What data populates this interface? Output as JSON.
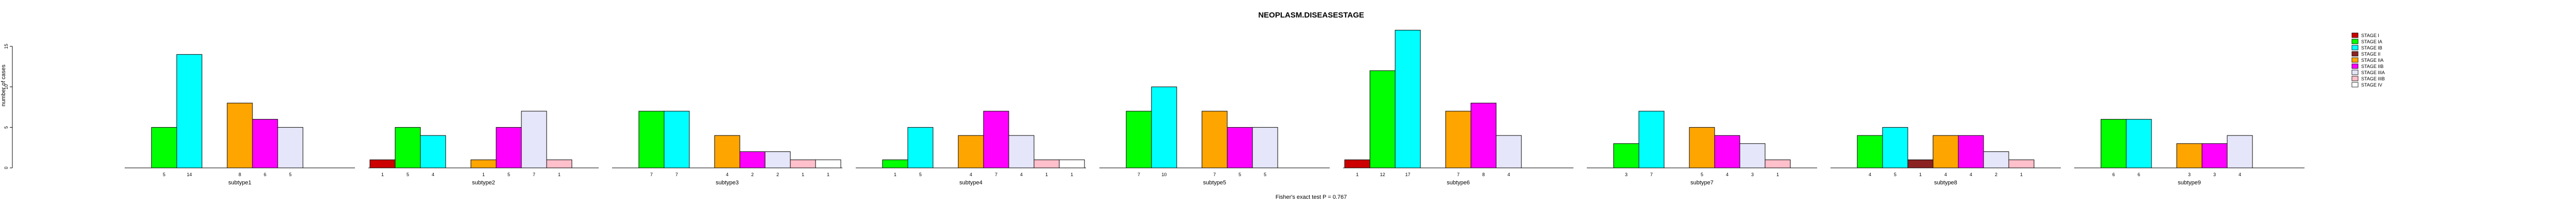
{
  "chart_data": {
    "type": "bar",
    "title": "NEOPLASM.DISEASESTAGE",
    "xlabel": "Fisher's exact test P = 0.767",
    "ylabel": "number of cases",
    "ylim": [
      0,
      15
    ],
    "yticks": [
      0,
      5,
      10,
      15
    ],
    "legend_position": "top-right",
    "stages": [
      {
        "name": "STAGE I",
        "color": "#cc0000"
      },
      {
        "name": "STAGE IA",
        "color": "#00ff00"
      },
      {
        "name": "STAGE IB",
        "color": "#00ffff"
      },
      {
        "name": "STAGE II",
        "color": "#8b2323"
      },
      {
        "name": "STAGE IIA",
        "color": "#ffa500"
      },
      {
        "name": "STAGE IIB",
        "color": "#ff00ff"
      },
      {
        "name": "STAGE IIIA",
        "color": "#e6e6fa"
      },
      {
        "name": "STAGE IIIB",
        "color": "#ffc0cb"
      },
      {
        "name": "STAGE IV",
        "color": "#ffffff"
      }
    ],
    "groups": [
      {
        "name": "subtype1",
        "values": [
          0,
          5,
          14,
          0,
          8,
          6,
          5,
          0,
          0
        ]
      },
      {
        "name": "subtype2",
        "values": [
          1,
          5,
          4,
          0,
          1,
          5,
          7,
          1,
          0
        ]
      },
      {
        "name": "subtype3",
        "values": [
          0,
          7,
          7,
          0,
          4,
          2,
          2,
          1,
          1
        ]
      },
      {
        "name": "subtype4",
        "values": [
          0,
          1,
          5,
          0,
          4,
          7,
          4,
          1,
          1
        ]
      },
      {
        "name": "subtype5",
        "values": [
          0,
          7,
          10,
          0,
          7,
          5,
          5,
          0,
          0
        ]
      },
      {
        "name": "subtype6",
        "values": [
          1,
          12,
          17,
          0,
          7,
          8,
          4,
          0,
          0
        ]
      },
      {
        "name": "subtype7",
        "values": [
          0,
          3,
          7,
          0,
          5,
          4,
          3,
          1,
          0
        ]
      },
      {
        "name": "subtype8",
        "values": [
          0,
          4,
          5,
          1,
          4,
          4,
          2,
          1,
          0
        ]
      },
      {
        "name": "subtype9",
        "values": [
          0,
          6,
          6,
          0,
          3,
          3,
          4,
          0,
          0
        ]
      }
    ]
  }
}
